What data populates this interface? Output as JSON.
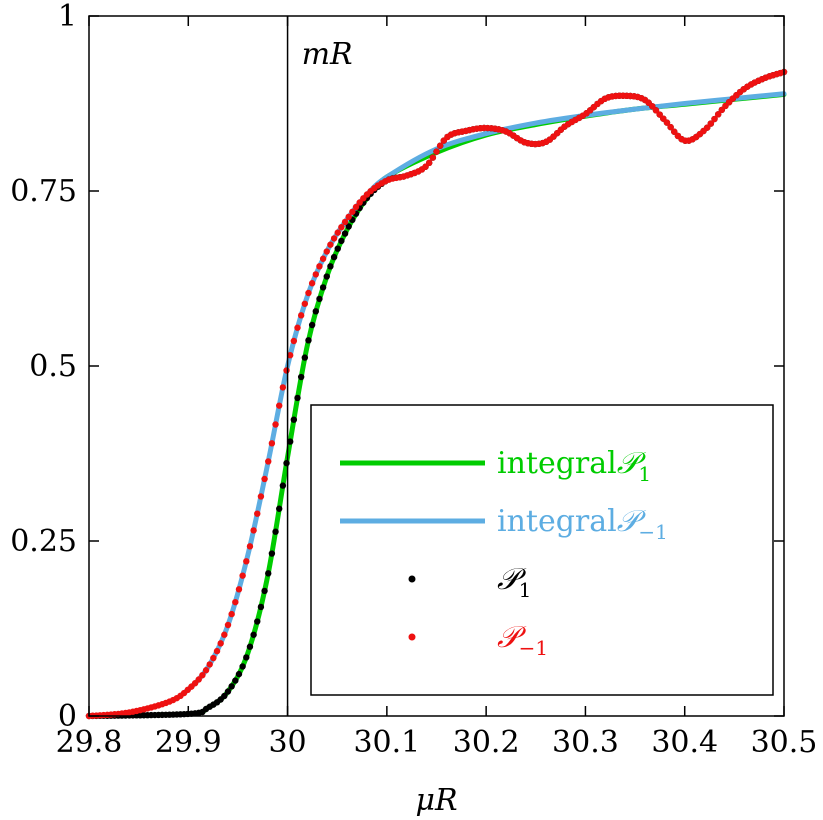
{
  "chart_data": {
    "type": "line",
    "xlabel": "μR",
    "ylabel": "",
    "xlim": [
      29.8,
      30.5
    ],
    "ylim": [
      0,
      1
    ],
    "xticks": [
      "29.8",
      "29.9",
      "30",
      "30.1",
      "30.2",
      "30.3",
      "30.4",
      "30.5"
    ],
    "yticks": [
      "0",
      "0.25",
      "0.5",
      "0.75",
      "1"
    ],
    "annotation": {
      "text": "mR",
      "x": 30.0
    },
    "legend_position": "lower-right",
    "series": [
      {
        "name": "integral 𝒫1",
        "legend_main": "integral",
        "legend_script": "𝒫",
        "legend_sub": "1",
        "style": "line",
        "color": "#00cc00",
        "x": [
          29.8,
          29.9,
          29.92,
          29.94,
          29.96,
          29.98,
          30.0,
          30.02,
          30.04,
          30.06,
          30.08,
          30.1,
          30.15,
          30.2,
          30.25,
          30.3,
          30.35,
          30.4,
          30.45,
          30.5
        ],
        "y": [
          0.0,
          0.003,
          0.012,
          0.035,
          0.09,
          0.2,
          0.37,
          0.53,
          0.63,
          0.695,
          0.74,
          0.77,
          0.805,
          0.83,
          0.845,
          0.857,
          0.867,
          0.874,
          0.881,
          0.888
        ]
      },
      {
        "name": "integral 𝒫-1",
        "legend_main": "integral",
        "legend_script": "𝒫",
        "legend_sub": "−1",
        "style": "line",
        "color": "#5dade2",
        "x": [
          29.8,
          29.84,
          29.88,
          29.9,
          29.92,
          29.94,
          29.96,
          29.98,
          30.0,
          30.02,
          30.04,
          30.06,
          30.08,
          30.1,
          30.15,
          30.2,
          30.25,
          30.3,
          30.35,
          30.4,
          30.45,
          30.5
        ],
        "y": [
          0.0,
          0.005,
          0.02,
          0.038,
          0.07,
          0.13,
          0.23,
          0.36,
          0.5,
          0.6,
          0.665,
          0.71,
          0.745,
          0.77,
          0.81,
          0.832,
          0.847,
          0.858,
          0.867,
          0.875,
          0.882,
          0.889
        ]
      },
      {
        "name": "𝒫1",
        "legend_script": "𝒫",
        "legend_sub": "1",
        "style": "dots",
        "color": "#000000",
        "x": [
          29.8,
          29.9,
          29.92,
          29.94,
          29.96,
          29.98,
          30.0,
          30.02,
          30.04,
          30.06,
          30.08,
          30.1,
          30.12,
          30.14,
          30.16,
          30.18,
          30.2,
          30.22,
          30.24,
          30.26,
          30.28,
          30.3,
          30.32,
          30.34,
          30.36,
          30.38,
          30.4,
          30.42,
          30.44,
          30.46,
          30.48,
          30.5
        ],
        "y": [
          0.0,
          0.003,
          0.012,
          0.035,
          0.09,
          0.2,
          0.37,
          0.53,
          0.63,
          0.695,
          0.74,
          0.765,
          0.772,
          0.786,
          0.826,
          0.836,
          0.84,
          0.835,
          0.819,
          0.82,
          0.843,
          0.86,
          0.882,
          0.886,
          0.88,
          0.851,
          0.822,
          0.837,
          0.87,
          0.896,
          0.911,
          0.92
        ]
      },
      {
        "name": "𝒫-1",
        "legend_script": "𝒫",
        "legend_sub": "−1",
        "style": "dots",
        "color": "#ee1111",
        "x": [
          29.8,
          29.84,
          29.88,
          29.9,
          29.92,
          29.94,
          29.96,
          29.98,
          30.0,
          30.02,
          30.04,
          30.06,
          30.08,
          30.1,
          30.12,
          30.14,
          30.16,
          30.18,
          30.2,
          30.22,
          30.24,
          30.26,
          30.28,
          30.3,
          30.32,
          30.34,
          30.36,
          30.38,
          30.4,
          30.42,
          30.44,
          30.46,
          30.48,
          30.5
        ],
        "y": [
          0.0,
          0.005,
          0.02,
          0.038,
          0.07,
          0.13,
          0.23,
          0.36,
          0.5,
          0.6,
          0.665,
          0.71,
          0.745,
          0.765,
          0.772,
          0.786,
          0.826,
          0.836,
          0.84,
          0.835,
          0.819,
          0.82,
          0.843,
          0.86,
          0.882,
          0.886,
          0.88,
          0.851,
          0.822,
          0.837,
          0.87,
          0.896,
          0.911,
          0.92
        ]
      }
    ]
  }
}
